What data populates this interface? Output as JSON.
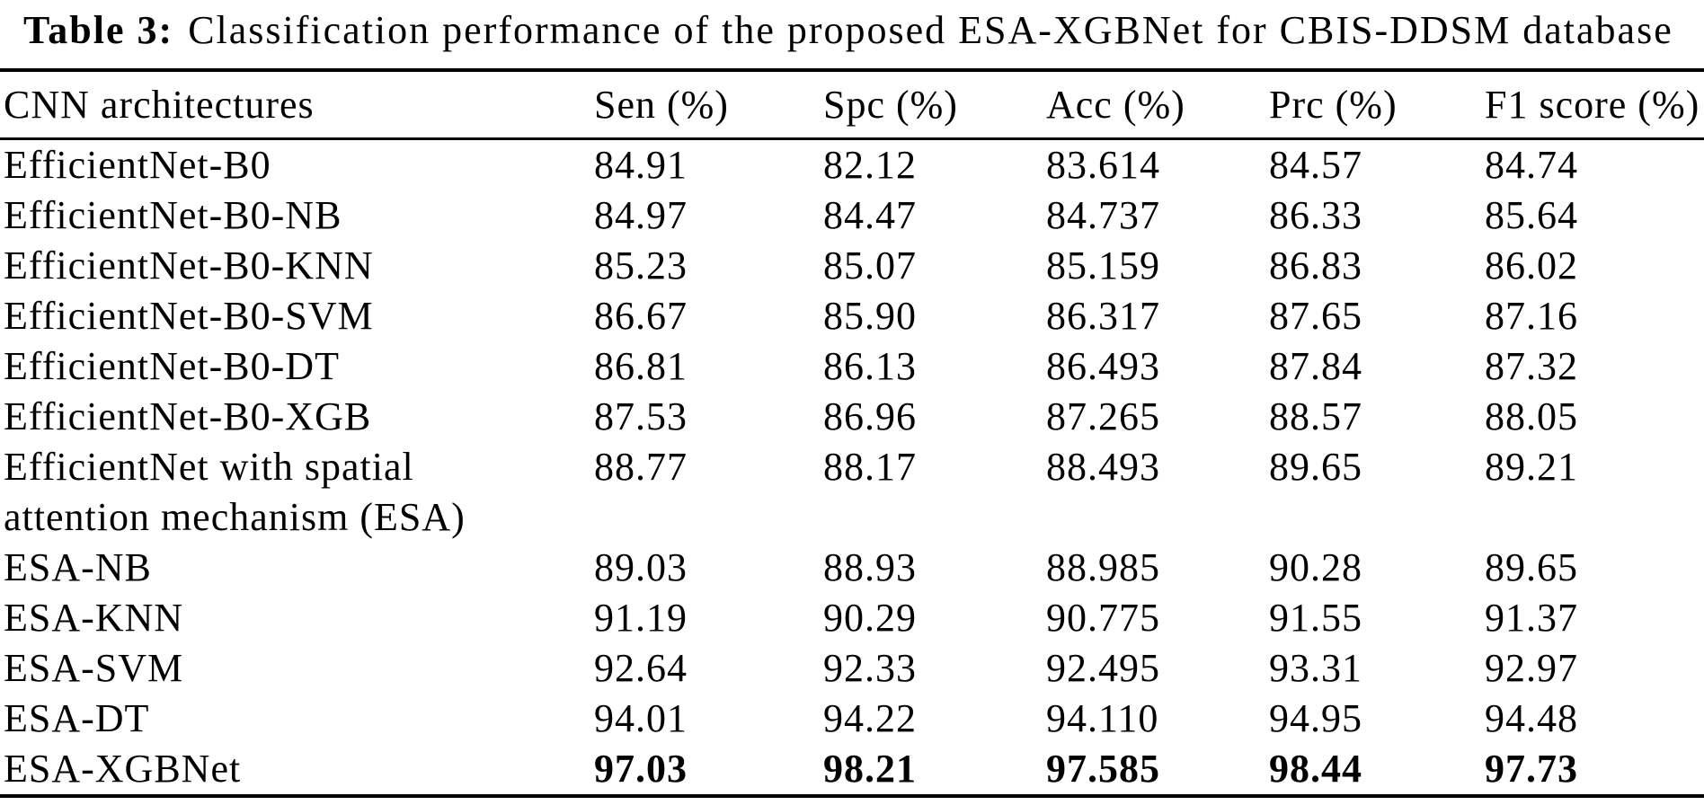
{
  "title": {
    "label": "Table 3:",
    "text": "Classification performance of the proposed ESA-XGBNet for CBIS-DDSM database"
  },
  "table": {
    "columns": [
      "CNN architectures",
      "Sen (%)",
      "Spc (%)",
      "Acc (%)",
      "Prc (%)",
      "F1 score (%)"
    ],
    "rows": [
      {
        "architecture": "EfficientNet-B0",
        "values": [
          "84.91",
          "82.12",
          "83.614",
          "84.57",
          "84.74"
        ],
        "bold": false
      },
      {
        "architecture": "EfficientNet-B0-NB",
        "values": [
          "84.97",
          "84.47",
          "84.737",
          "86.33",
          "85.64"
        ],
        "bold": false
      },
      {
        "architecture": "EfficientNet-B0-KNN",
        "values": [
          "85.23",
          "85.07",
          "85.159",
          "86.83",
          "86.02"
        ],
        "bold": false
      },
      {
        "architecture": "EfficientNet-B0-SVM",
        "values": [
          "86.67",
          "85.90",
          "86.317",
          "87.65",
          "87.16"
        ],
        "bold": false
      },
      {
        "architecture": "EfficientNet-B0-DT",
        "values": [
          "86.81",
          "86.13",
          "86.493",
          "87.84",
          "87.32"
        ],
        "bold": false
      },
      {
        "architecture": "EfficientNet-B0-XGB",
        "values": [
          "87.53",
          "86.96",
          "87.265",
          "88.57",
          "88.05"
        ],
        "bold": false
      },
      {
        "architecture": "EfficientNet with spatial attention mechanism (ESA)",
        "values": [
          "88.77",
          "88.17",
          "88.493",
          "89.65",
          "89.21"
        ],
        "bold": false
      },
      {
        "architecture": "ESA-NB",
        "values": [
          "89.03",
          "88.93",
          "88.985",
          "90.28",
          "89.65"
        ],
        "bold": false
      },
      {
        "architecture": "ESA-KNN",
        "values": [
          "91.19",
          "90.29",
          "90.775",
          "91.55",
          "91.37"
        ],
        "bold": false
      },
      {
        "architecture": "ESA-SVM",
        "values": [
          "92.64",
          "92.33",
          "92.495",
          "93.31",
          "92.97"
        ],
        "bold": false
      },
      {
        "architecture": "ESA-DT",
        "values": [
          "94.01",
          "94.22",
          "94.110",
          "94.95",
          "94.48"
        ],
        "bold": false
      },
      {
        "architecture": "ESA-XGBNet",
        "values": [
          "97.03",
          "98.21",
          "97.585",
          "98.44",
          "97.73"
        ],
        "bold": true
      }
    ]
  }
}
